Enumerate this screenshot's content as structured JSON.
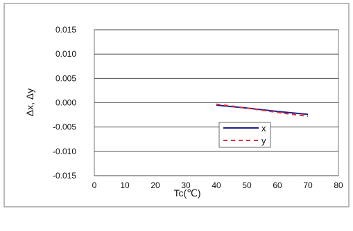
{
  "chart_data": {
    "type": "line",
    "xlabel": "Tc(℃)",
    "ylabel": "Δx, Δy",
    "xlim": [
      0,
      80
    ],
    "ylim": [
      -0.015,
      0.015
    ],
    "xticks": [
      0,
      10,
      20,
      30,
      40,
      50,
      60,
      70,
      80
    ],
    "yticks": [
      0.015,
      0.01,
      0.005,
      0.0,
      -0.005,
      -0.01,
      -0.015
    ],
    "xtick_labels": [
      "0",
      "10",
      "20",
      "30",
      "40",
      "50",
      "60",
      "70",
      "80"
    ],
    "ytick_labels": [
      "0.015",
      "0.010",
      "0.005",
      "0.000",
      "-0.005",
      "-0.010",
      "-0.015"
    ],
    "grid": "horizontal",
    "legend_position": "center-right",
    "series": [
      {
        "name": "x",
        "style": "solid",
        "color": "#1f1f8a",
        "x": [
          40,
          50,
          60,
          70
        ],
        "y": [
          -0.0005,
          -0.0011,
          -0.0018,
          -0.0024
        ]
      },
      {
        "name": "y",
        "style": "dashed",
        "color": "#e0303a",
        "x": [
          40,
          50,
          60,
          70
        ],
        "y": [
          -0.0003,
          -0.0011,
          -0.002,
          -0.0028
        ]
      }
    ]
  }
}
